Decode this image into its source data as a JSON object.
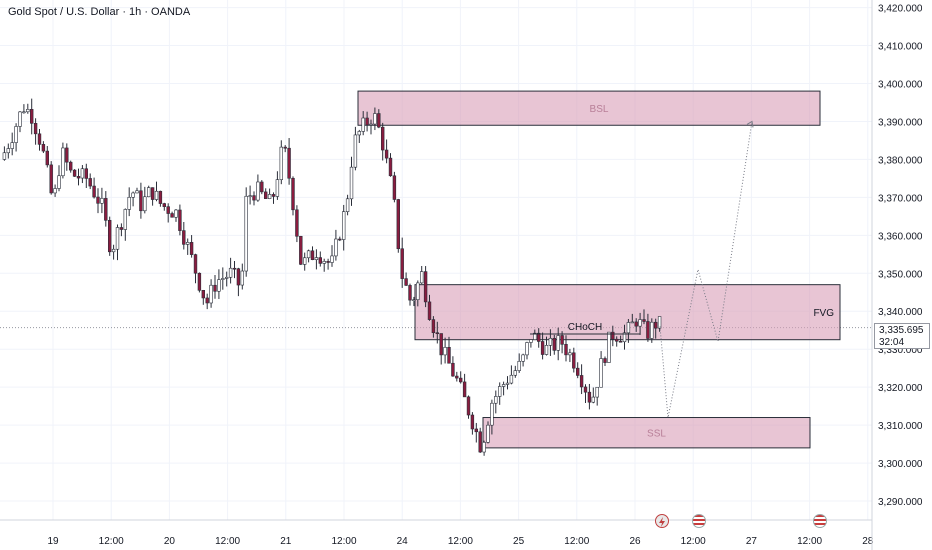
{
  "header": {
    "title": "Gold Spot / U.S. Dollar · 1h · OANDA"
  },
  "price_label": {
    "value": "3,335.695",
    "countdown": "32:04"
  },
  "colors": {
    "bull": "#ffffff",
    "bear": "#8a1c3f",
    "zone_fill": "#d99fb7",
    "zone_border": "#2a2e39",
    "grid": "#f0f3fa"
  },
  "chart_data": {
    "type": "candlestick",
    "title": "Gold Spot / U.S. Dollar · 1h · OANDA",
    "ylim": [
      3285,
      3422
    ],
    "y_ticks": [
      "3,420.000",
      "3,410.000",
      "3,400.000",
      "3,390.000",
      "3,380.000",
      "3,370.000",
      "3,360.000",
      "3,350.000",
      "3,340.000",
      "3,330.000",
      "3,320.000",
      "3,310.000",
      "3,300.000",
      "3,290.000"
    ],
    "x_ticks": [
      "19",
      "12:00",
      "20",
      "12:00",
      "21",
      "12:00",
      "24",
      "12:00",
      "25",
      "12:00",
      "26",
      "12:00",
      "27",
      "12:00",
      "28"
    ],
    "current_price": 3335.695,
    "anchors": [
      [
        0,
        3380
      ],
      [
        10,
        3386
      ],
      [
        22,
        3394
      ],
      [
        30,
        3392
      ],
      [
        40,
        3384
      ],
      [
        52,
        3368
      ],
      [
        60,
        3382
      ],
      [
        70,
        3376
      ],
      [
        85,
        3375
      ],
      [
        100,
        3368
      ],
      [
        110,
        3356
      ],
      [
        120,
        3364
      ],
      [
        130,
        3372
      ],
      [
        140,
        3368
      ],
      [
        150,
        3372
      ],
      [
        160,
        3368
      ],
      [
        175,
        3366
      ],
      [
        190,
        3354
      ],
      [
        205,
        3342
      ],
      [
        215,
        3348
      ],
      [
        230,
        3350
      ],
      [
        240,
        3346
      ],
      [
        245,
        3370
      ],
      [
        255,
        3372
      ],
      [
        270,
        3368
      ],
      [
        282,
        3384
      ],
      [
        290,
        3372
      ],
      [
        300,
        3352
      ],
      [
        315,
        3356
      ],
      [
        330,
        3352
      ],
      [
        345,
        3368
      ],
      [
        352,
        3384
      ],
      [
        360,
        3388
      ],
      [
        372,
        3392
      ],
      [
        380,
        3386
      ],
      [
        392,
        3370
      ],
      [
        400,
        3350
      ],
      [
        410,
        3342
      ],
      [
        420,
        3350
      ],
      [
        430,
        3338
      ],
      [
        440,
        3330
      ],
      [
        455,
        3322
      ],
      [
        470,
        3312
      ],
      [
        480,
        3304
      ],
      [
        490,
        3316
      ],
      [
        505,
        3322
      ],
      [
        520,
        3326
      ],
      [
        530,
        3334
      ],
      [
        545,
        3330
      ],
      [
        560,
        3332
      ],
      [
        575,
        3326
      ],
      [
        590,
        3316
      ],
      [
        600,
        3326
      ],
      [
        610,
        3334
      ],
      [
        625,
        3334
      ],
      [
        635,
        3338
      ],
      [
        645,
        3334
      ],
      [
        655,
        3337
      ],
      [
        660,
        3336
      ]
    ],
    "zones": [
      {
        "label": "BSL",
        "y": [
          3389,
          3398
        ]
      },
      {
        "label": "FVG",
        "y": [
          3332.5,
          3347
        ]
      },
      {
        "label": "SSL",
        "y": [
          3304,
          3312
        ]
      }
    ],
    "annotations": [
      "CHoCH"
    ],
    "projection": [
      [
        660,
        3336
      ],
      [
        668,
        3312
      ],
      [
        698,
        3351
      ],
      [
        718,
        3332
      ],
      [
        752,
        3390
      ]
    ]
  }
}
